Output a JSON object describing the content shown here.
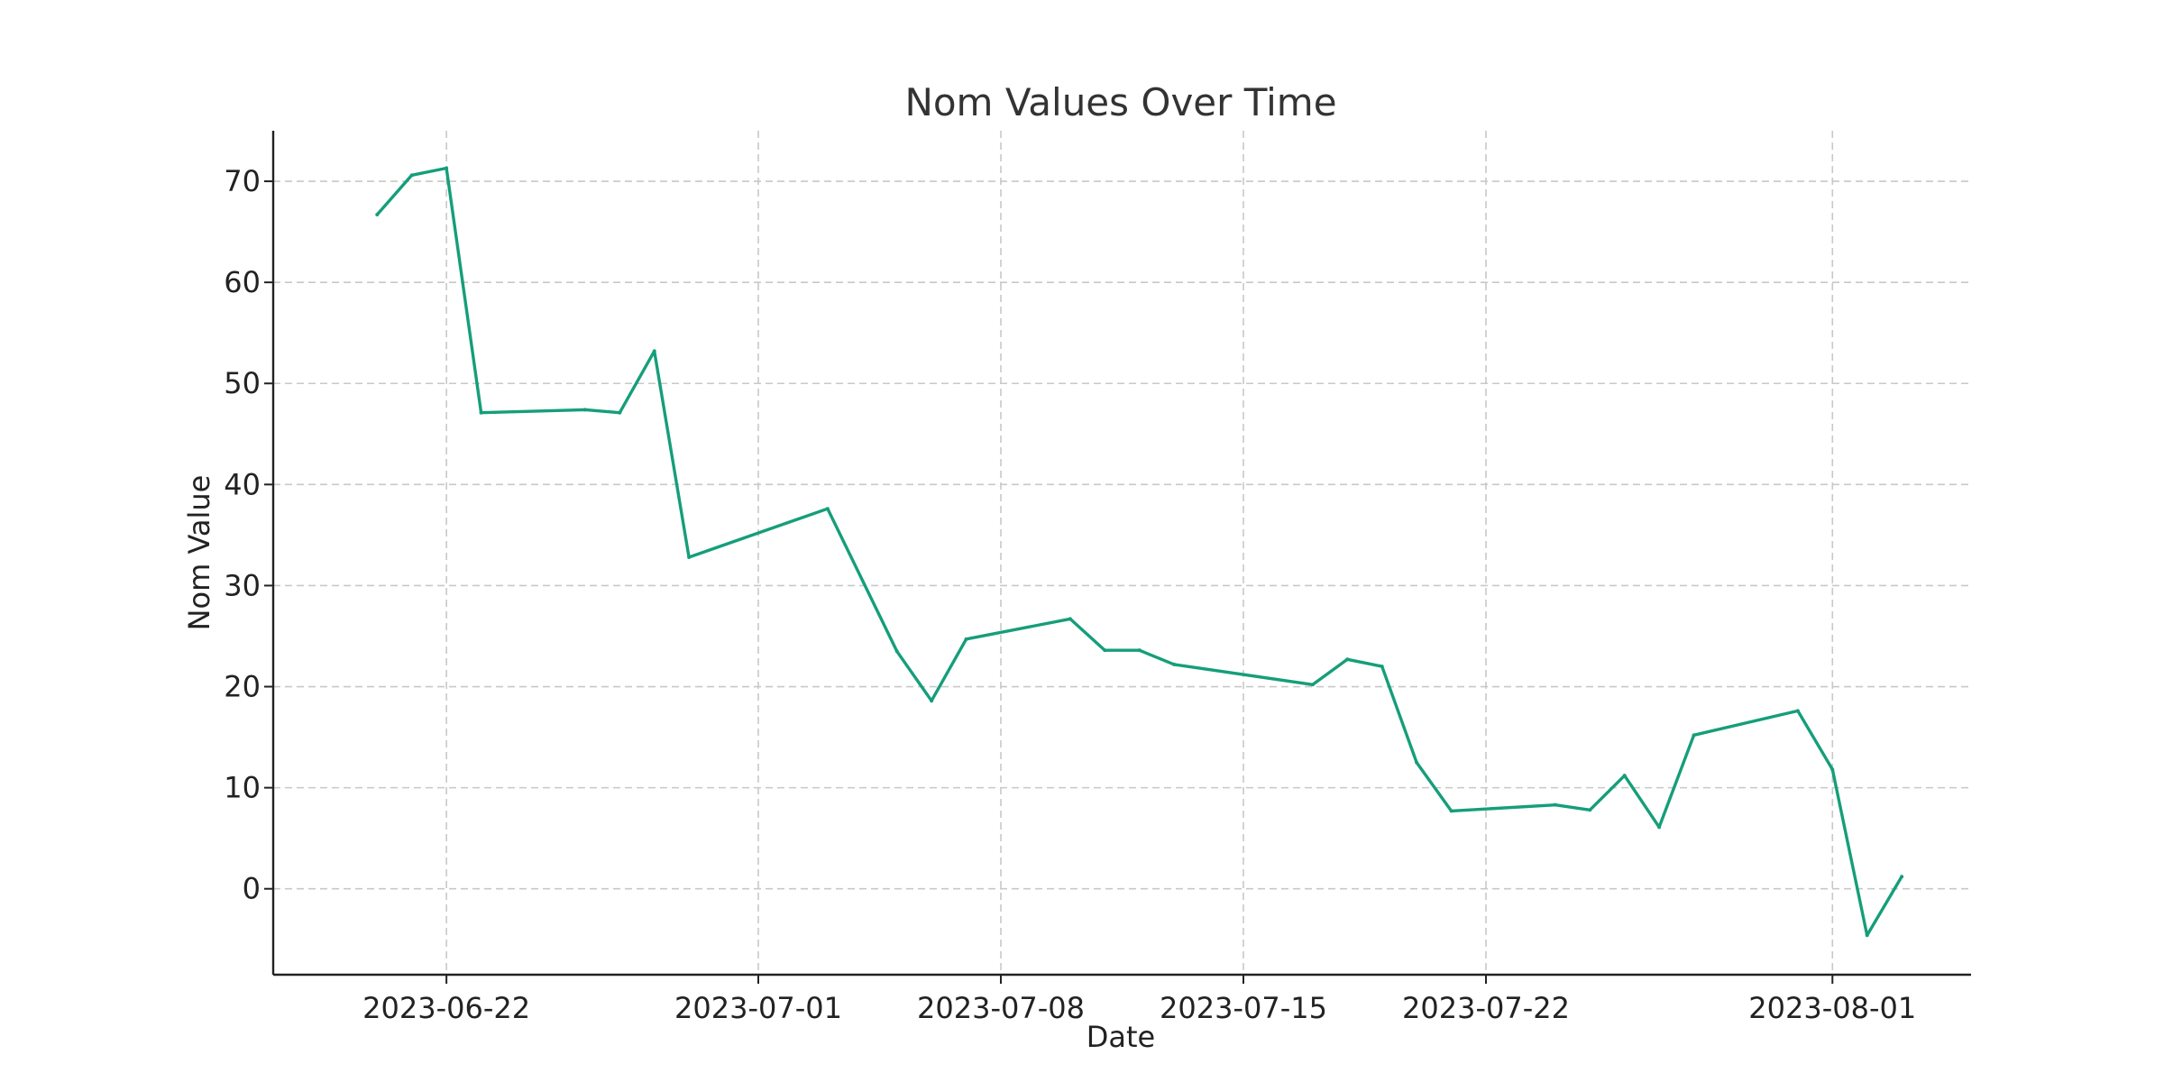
{
  "chart_data": {
    "type": "line",
    "title": "Nom Values Over Time",
    "xlabel": "Date",
    "ylabel": "Nom Value",
    "grid": true,
    "xlim": [
      "2023-06-17",
      "2023-08-05"
    ],
    "ylim": [
      -8.5,
      75
    ],
    "x_ticks": [
      "2023-06-22",
      "2023-07-01",
      "2023-07-08",
      "2023-07-15",
      "2023-07-22",
      "2023-08-01"
    ],
    "y_ticks": [
      0,
      10,
      20,
      30,
      40,
      50,
      60,
      70
    ],
    "series": [
      {
        "name": "Nom Value",
        "color": "#159e7a",
        "x": [
          "2023-06-20",
          "2023-06-21",
          "2023-06-22",
          "2023-06-23",
          "2023-06-26",
          "2023-06-27",
          "2023-06-28",
          "2023-06-29",
          "2023-07-03",
          "2023-07-05",
          "2023-07-06",
          "2023-07-07",
          "2023-07-10",
          "2023-07-11",
          "2023-07-12",
          "2023-07-13",
          "2023-07-17",
          "2023-07-18",
          "2023-07-19",
          "2023-07-20",
          "2023-07-21",
          "2023-07-24",
          "2023-07-25",
          "2023-07-26",
          "2023-07-27",
          "2023-07-28",
          "2023-07-31",
          "2023-08-01",
          "2023-08-02",
          "2023-08-03"
        ],
        "values": [
          66.7,
          70.6,
          71.3,
          47.1,
          47.4,
          47.1,
          53.2,
          32.8,
          37.6,
          23.5,
          18.6,
          24.7,
          26.7,
          23.6,
          23.6,
          22.2,
          20.2,
          22.7,
          22.0,
          12.5,
          7.7,
          8.3,
          7.8,
          11.2,
          6.1,
          15.2,
          17.6,
          11.8,
          -4.6,
          1.2
        ]
      }
    ]
  }
}
